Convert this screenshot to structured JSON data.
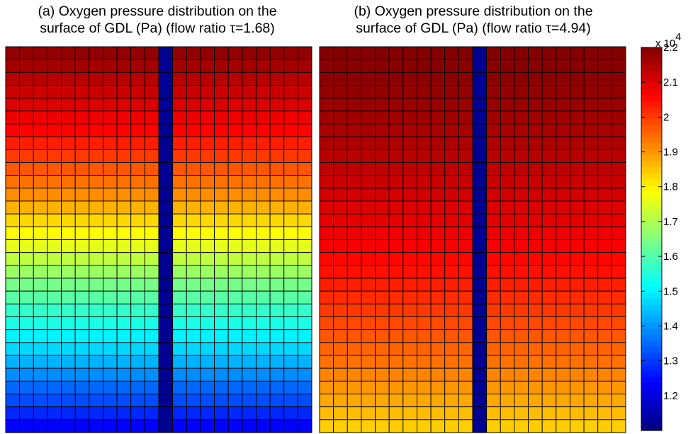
{
  "chart_data": [
    {
      "type": "heatmap",
      "title_line1": "(a) Oxygen pressure distribution on the",
      "title_line2": "surface of GDL (Pa) (flow ratio τ=1.68)",
      "grid": {
        "rows": 30,
        "cols": 22,
        "channel_col": 11
      },
      "row_values": [
        21800,
        21600,
        21400,
        21200,
        21000,
        20800,
        20600,
        20300,
        20000,
        19700,
        19400,
        19100,
        18700,
        18300,
        17900,
        17600,
        17200,
        16800,
        16400,
        16100,
        15700,
        15400,
        15000,
        14700,
        14300,
        13900,
        13500,
        13200,
        12800,
        12400
      ],
      "channel_value": 11200
    },
    {
      "type": "heatmap",
      "title_line1": "(b) Oxygen pressure distribution on the",
      "title_line2": "surface of GDL (Pa) (flow ratio τ=4.94)",
      "grid": {
        "rows": 30,
        "cols": 22,
        "channel_col": 11
      },
      "row_values": [
        21950,
        21900,
        21850,
        21800,
        21700,
        21650,
        21550,
        21500,
        21400,
        21300,
        21200,
        21100,
        21000,
        20900,
        20800,
        20700,
        20550,
        20450,
        20300,
        20150,
        20000,
        19850,
        19700,
        19550,
        19400,
        19200,
        19000,
        18800,
        18600,
        18400
      ],
      "channel_value": 11200
    }
  ],
  "colorbar": {
    "min": 11000,
    "max": 22000,
    "exponent_label": "x 10",
    "exponent_power": "4",
    "ticks": [
      {
        "value": 12000,
        "label": "1.2"
      },
      {
        "value": 13000,
        "label": "1.3"
      },
      {
        "value": 14000,
        "label": "1.4"
      },
      {
        "value": 15000,
        "label": "1.5"
      },
      {
        "value": 16000,
        "label": "1.6"
      },
      {
        "value": 17000,
        "label": "1.7"
      },
      {
        "value": 18000,
        "label": "1.8"
      },
      {
        "value": 19000,
        "label": "1.9"
      },
      {
        "value": 20000,
        "label": "2"
      },
      {
        "value": 21000,
        "label": "2.1"
      },
      {
        "value": 22000,
        "label": "2.2"
      }
    ],
    "colormap": "jet"
  }
}
